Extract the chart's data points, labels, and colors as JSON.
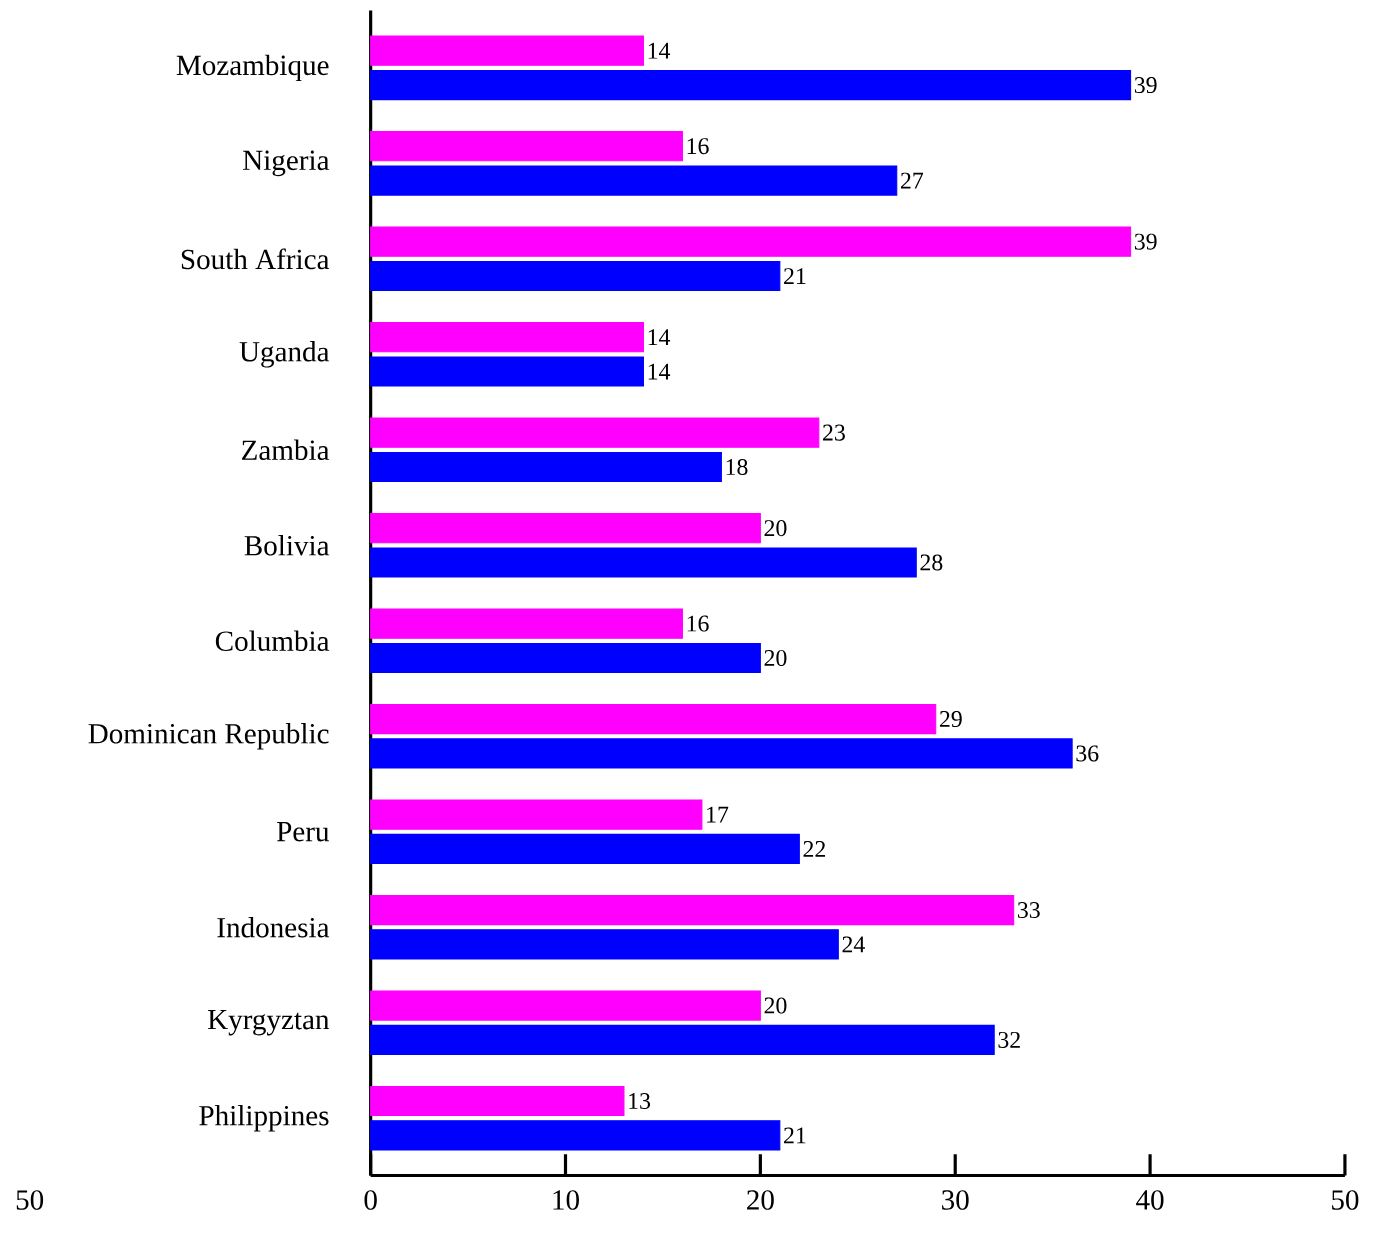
{
  "chart_data": {
    "type": "bar",
    "orientation": "horizontal",
    "categories": [
      "Mozambique",
      "Nigeria",
      "South Africa",
      "Uganda",
      "Zambia",
      "Bolivia",
      "Columbia",
      "Dominican Republic",
      "Peru",
      "Indonesia",
      "Kyrgyztan",
      "Philippines"
    ],
    "series": [
      {
        "color": "#ff00ff",
        "values": [
          14,
          16,
          39,
          14,
          23,
          20,
          16,
          29,
          17,
          33,
          20,
          13
        ]
      },
      {
        "color": "#0000ff",
        "values": [
          39,
          27,
          21,
          14,
          18,
          28,
          20,
          36,
          22,
          24,
          32,
          21
        ]
      }
    ],
    "xlim": [
      0,
      50
    ],
    "xticks": [
      0,
      10,
      20,
      30,
      40,
      50
    ],
    "data_labels": true,
    "annotations": [
      "50"
    ]
  }
}
